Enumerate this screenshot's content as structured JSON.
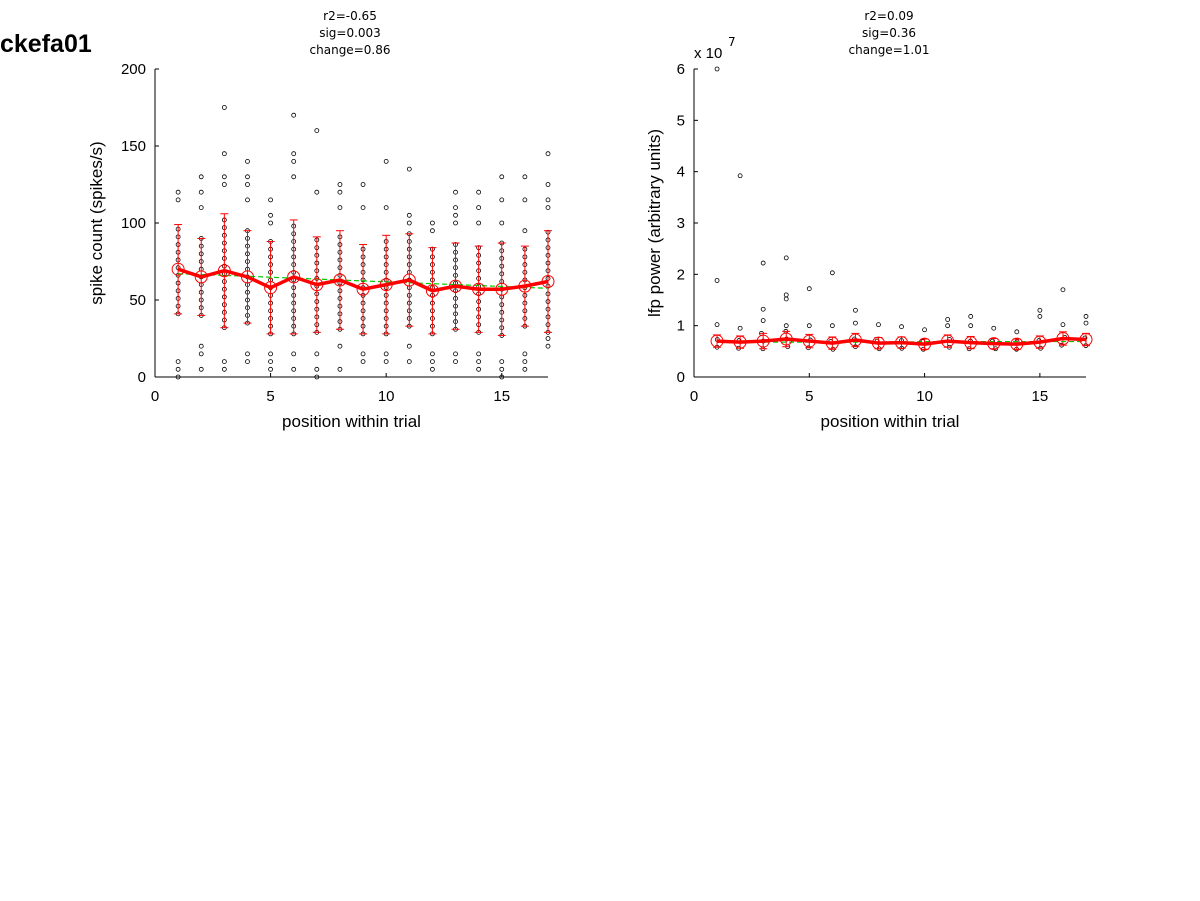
{
  "page_title": "ckefa01",
  "chart_data": [
    {
      "type": "scatter",
      "stats": [
        "r2=-0.65",
        "sig=0.003",
        "change=0.86"
      ],
      "xlabel": "position within trial",
      "ylabel": "spike count (spikes/s)",
      "xlim": [
        0,
        17
      ],
      "ylim": [
        0,
        200
      ],
      "xticks": [
        0,
        5,
        10,
        15
      ],
      "yticks": [
        0,
        50,
        100,
        150,
        200
      ],
      "mean_color": "#ff0000",
      "fit_color": "#00cc00",
      "points_x": [
        1,
        2,
        3,
        4,
        5,
        6,
        7,
        8,
        9,
        10,
        11,
        12,
        13,
        14,
        15,
        16,
        17
      ],
      "means": [
        70,
        65,
        69,
        65,
        58,
        65,
        60,
        63,
        57,
        60,
        63,
        56,
        59,
        57,
        57,
        59,
        62
      ],
      "errors": [
        29,
        25,
        37,
        30,
        30,
        37,
        31,
        32,
        29,
        32,
        30,
        28,
        28,
        28,
        30,
        26,
        33
      ],
      "fit": [
        67,
        66.5,
        66,
        65.4,
        64.8,
        64.2,
        63.6,
        63,
        62.4,
        61.8,
        61.2,
        60.6,
        60,
        59.4,
        58.8,
        58.2,
        57.6
      ],
      "outliers": [
        [
          1,
          0
        ],
        [
          1,
          5
        ],
        [
          1,
          10
        ],
        [
          1,
          115
        ],
        [
          1,
          120
        ],
        [
          2,
          5
        ],
        [
          2,
          15
        ],
        [
          2,
          20
        ],
        [
          2,
          110
        ],
        [
          2,
          120
        ],
        [
          2,
          130
        ],
        [
          3,
          5
        ],
        [
          3,
          10
        ],
        [
          3,
          125
        ],
        [
          3,
          130
        ],
        [
          3,
          145
        ],
        [
          3,
          175
        ],
        [
          4,
          10
        ],
        [
          4,
          15
        ],
        [
          4,
          115
        ],
        [
          4,
          125
        ],
        [
          4,
          130
        ],
        [
          4,
          140
        ],
        [
          5,
          5
        ],
        [
          5,
          10
        ],
        [
          5,
          15
        ],
        [
          5,
          100
        ],
        [
          5,
          105
        ],
        [
          5,
          115
        ],
        [
          6,
          5
        ],
        [
          6,
          15
        ],
        [
          6,
          130
        ],
        [
          6,
          140
        ],
        [
          6,
          145
        ],
        [
          6,
          170
        ],
        [
          7,
          0
        ],
        [
          7,
          5
        ],
        [
          7,
          15
        ],
        [
          7,
          120
        ],
        [
          7,
          160
        ],
        [
          8,
          5
        ],
        [
          8,
          20
        ],
        [
          8,
          110
        ],
        [
          8,
          120
        ],
        [
          8,
          125
        ],
        [
          9,
          10
        ],
        [
          9,
          15
        ],
        [
          9,
          110
        ],
        [
          9,
          125
        ],
        [
          10,
          10
        ],
        [
          10,
          15
        ],
        [
          10,
          110
        ],
        [
          10,
          140
        ],
        [
          11,
          10
        ],
        [
          11,
          20
        ],
        [
          11,
          100
        ],
        [
          11,
          105
        ],
        [
          11,
          135
        ],
        [
          12,
          5
        ],
        [
          12,
          10
        ],
        [
          12,
          15
        ],
        [
          12,
          95
        ],
        [
          12,
          100
        ],
        [
          13,
          10
        ],
        [
          13,
          15
        ],
        [
          13,
          100
        ],
        [
          13,
          105
        ],
        [
          13,
          110
        ],
        [
          13,
          120
        ],
        [
          14,
          5
        ],
        [
          14,
          10
        ],
        [
          14,
          15
        ],
        [
          14,
          100
        ],
        [
          14,
          110
        ],
        [
          14,
          120
        ],
        [
          15,
          0
        ],
        [
          15,
          5
        ],
        [
          15,
          10
        ],
        [
          15,
          100
        ],
        [
          15,
          115
        ],
        [
          15,
          130
        ],
        [
          16,
          5
        ],
        [
          16,
          10
        ],
        [
          16,
          15
        ],
        [
          16,
          95
        ],
        [
          16,
          115
        ],
        [
          16,
          130
        ],
        [
          17,
          20
        ],
        [
          17,
          25
        ],
        [
          17,
          110
        ],
        [
          17,
          115
        ],
        [
          17,
          125
        ],
        [
          17,
          145
        ]
      ]
    },
    {
      "type": "scatter",
      "stats": [
        "r2=0.09",
        "sig=0.36",
        "change=1.01"
      ],
      "xlabel": "position within trial",
      "ylabel": "lfp power (arbitrary units)",
      "yscale_label": "x 10",
      "yscale_exponent": "7",
      "xlim": [
        0,
        17
      ],
      "ylim": [
        0,
        6
      ],
      "xticks": [
        0,
        5,
        10,
        15
      ],
      "yticks": [
        0,
        1,
        2,
        3,
        4,
        5,
        6
      ],
      "mean_color": "#ff0000",
      "fit_color": "#00cc00",
      "points_x": [
        1,
        2,
        3,
        4,
        5,
        6,
        7,
        8,
        9,
        10,
        11,
        12,
        13,
        14,
        15,
        16,
        17
      ],
      "means": [
        0.7,
        0.68,
        0.7,
        0.74,
        0.7,
        0.66,
        0.72,
        0.66,
        0.67,
        0.64,
        0.7,
        0.67,
        0.65,
        0.64,
        0.68,
        0.75,
        0.73
      ],
      "errors": [
        0.12,
        0.12,
        0.15,
        0.15,
        0.13,
        0.12,
        0.13,
        0.11,
        0.11,
        0.1,
        0.12,
        0.12,
        0.1,
        0.1,
        0.12,
        0.13,
        0.12
      ],
      "fit": [
        0.68,
        0.68,
        0.68,
        0.68,
        0.68,
        0.68,
        0.68,
        0.68,
        0.68,
        0.69,
        0.69,
        0.69,
        0.69,
        0.69,
        0.69,
        0.69,
        0.69
      ],
      "outliers": [
        [
          1,
          6.0
        ],
        [
          1,
          1.88
        ],
        [
          1,
          1.02
        ],
        [
          2,
          3.92
        ],
        [
          2,
          0.95
        ],
        [
          3,
          2.22
        ],
        [
          3,
          1.32
        ],
        [
          3,
          1.1
        ],
        [
          4,
          2.32
        ],
        [
          4,
          1.6
        ],
        [
          4,
          1.52
        ],
        [
          4,
          1.0
        ],
        [
          5,
          1.72
        ],
        [
          5,
          1.0
        ],
        [
          6,
          2.03
        ],
        [
          6,
          1.0
        ],
        [
          7,
          1.3
        ],
        [
          7,
          1.05
        ],
        [
          8,
          1.02
        ],
        [
          9,
          0.98
        ],
        [
          10,
          0.92
        ],
        [
          11,
          1.12
        ],
        [
          11,
          1.0
        ],
        [
          12,
          1.18
        ],
        [
          12,
          1.0
        ],
        [
          13,
          0.95
        ],
        [
          14,
          0.88
        ],
        [
          15,
          1.3
        ],
        [
          15,
          1.18
        ],
        [
          16,
          1.7
        ],
        [
          16,
          1.02
        ],
        [
          17,
          1.18
        ],
        [
          17,
          1.05
        ]
      ]
    }
  ]
}
